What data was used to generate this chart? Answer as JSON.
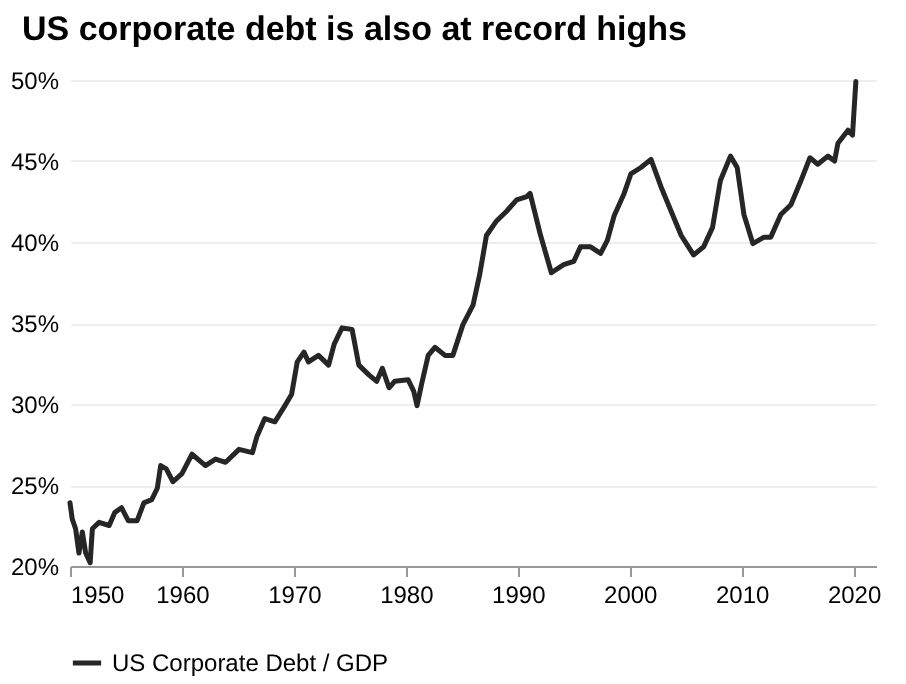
{
  "chart_data": {
    "type": "line",
    "title": "US corporate debt is also at record highs",
    "xlim": [
      1950,
      2022
    ],
    "xticks": [
      1950,
      1960,
      1970,
      1980,
      1990,
      2000,
      2010,
      2020
    ],
    "ylim": [
      20,
      50
    ],
    "yticks": [
      {
        "value": 20,
        "label": "20%"
      },
      {
        "value": 25,
        "label": "25%"
      },
      {
        "value": 30,
        "label": "30%"
      },
      {
        "value": 35,
        "label": "35%"
      },
      {
        "value": 40,
        "label": "40%"
      },
      {
        "value": 45,
        "label": "45%"
      },
      {
        "value": 50,
        "label": "50%"
      }
    ],
    "grid": "y",
    "legend": "bottom",
    "x": [
      1950,
      1950.2,
      1950.5,
      1950.8,
      1951.1,
      1951.4,
      1951.8,
      1952.0,
      1952.6,
      1953.5,
      1954.0,
      1954.6,
      1955.2,
      1956.0,
      1956.6,
      1957.3,
      1957.8,
      1958.1,
      1958.6,
      1959.2,
      1960.0,
      1960.9,
      1962.1,
      1963.0,
      1963.9,
      1965.1,
      1966.3,
      1966.7,
      1967.4,
      1968.3,
      1969.2,
      1969.8,
      1970.3,
      1970.9,
      1971.3,
      1972.2,
      1973.1,
      1973.6,
      1974.3,
      1975.2,
      1975.8,
      1976.7,
      1977.4,
      1977.9,
      1978.5,
      1979.0,
      1980.2,
      1980.7,
      1981.0,
      1981.4,
      1982.0,
      1982.6,
      1983.5,
      1984.2,
      1985.1,
      1986.0,
      1986.6,
      1987.2,
      1988.1,
      1989.0,
      1989.9,
      1990.8,
      1991.1,
      1992.0,
      1993.0,
      1994.1,
      1995.0,
      1995.6,
      1996.5,
      1997.4,
      1998.0,
      1998.6,
      1999.5,
      2000.1,
      2001.0,
      2001.9,
      2002.8,
      2003.7,
      2004.6,
      2005.7,
      2006.6,
      2007.4,
      2008.1,
      2009.0,
      2009.6,
      2010.2,
      2011.0,
      2012.0,
      2012.6,
      2013.5,
      2014.4,
      2015.3,
      2016.1,
      2016.8,
      2017.7,
      2018.3,
      2018.6,
      2019.5,
      2019.9,
      2020.2
    ],
    "series": [
      {
        "name": "US Corporate Debt / GDP",
        "color": "#262626",
        "values": [
          23.9,
          22.9,
          22.3,
          20.8,
          22.1,
          20.8,
          20.2,
          22.3,
          22.7,
          22.5,
          23.3,
          23.6,
          22.8,
          22.8,
          23.9,
          24.1,
          24.8,
          26.2,
          26.0,
          25.2,
          25.7,
          26.9,
          26.2,
          26.6,
          26.4,
          27.2,
          27.0,
          28.0,
          29.1,
          28.9,
          29.9,
          30.6,
          32.6,
          33.2,
          32.6,
          33.0,
          32.4,
          33.7,
          34.7,
          34.6,
          32.4,
          31.8,
          31.4,
          32.2,
          31.0,
          31.4,
          31.5,
          30.8,
          29.9,
          31.2,
          33.0,
          33.5,
          33.0,
          33.0,
          34.9,
          36.1,
          38.0,
          40.4,
          41.3,
          41.9,
          42.6,
          42.8,
          43.0,
          40.5,
          38.1,
          38.6,
          38.8,
          39.7,
          39.7,
          39.3,
          40.1,
          41.6,
          43.0,
          44.2,
          44.6,
          45.1,
          43.4,
          41.9,
          40.4,
          39.2,
          39.7,
          40.9,
          43.8,
          45.3,
          44.6,
          41.7,
          39.9,
          40.3,
          40.3,
          41.7,
          42.3,
          43.8,
          45.2,
          44.8,
          45.3,
          45.0,
          46.1,
          46.9,
          46.6,
          49.9
        ]
      }
    ]
  }
}
